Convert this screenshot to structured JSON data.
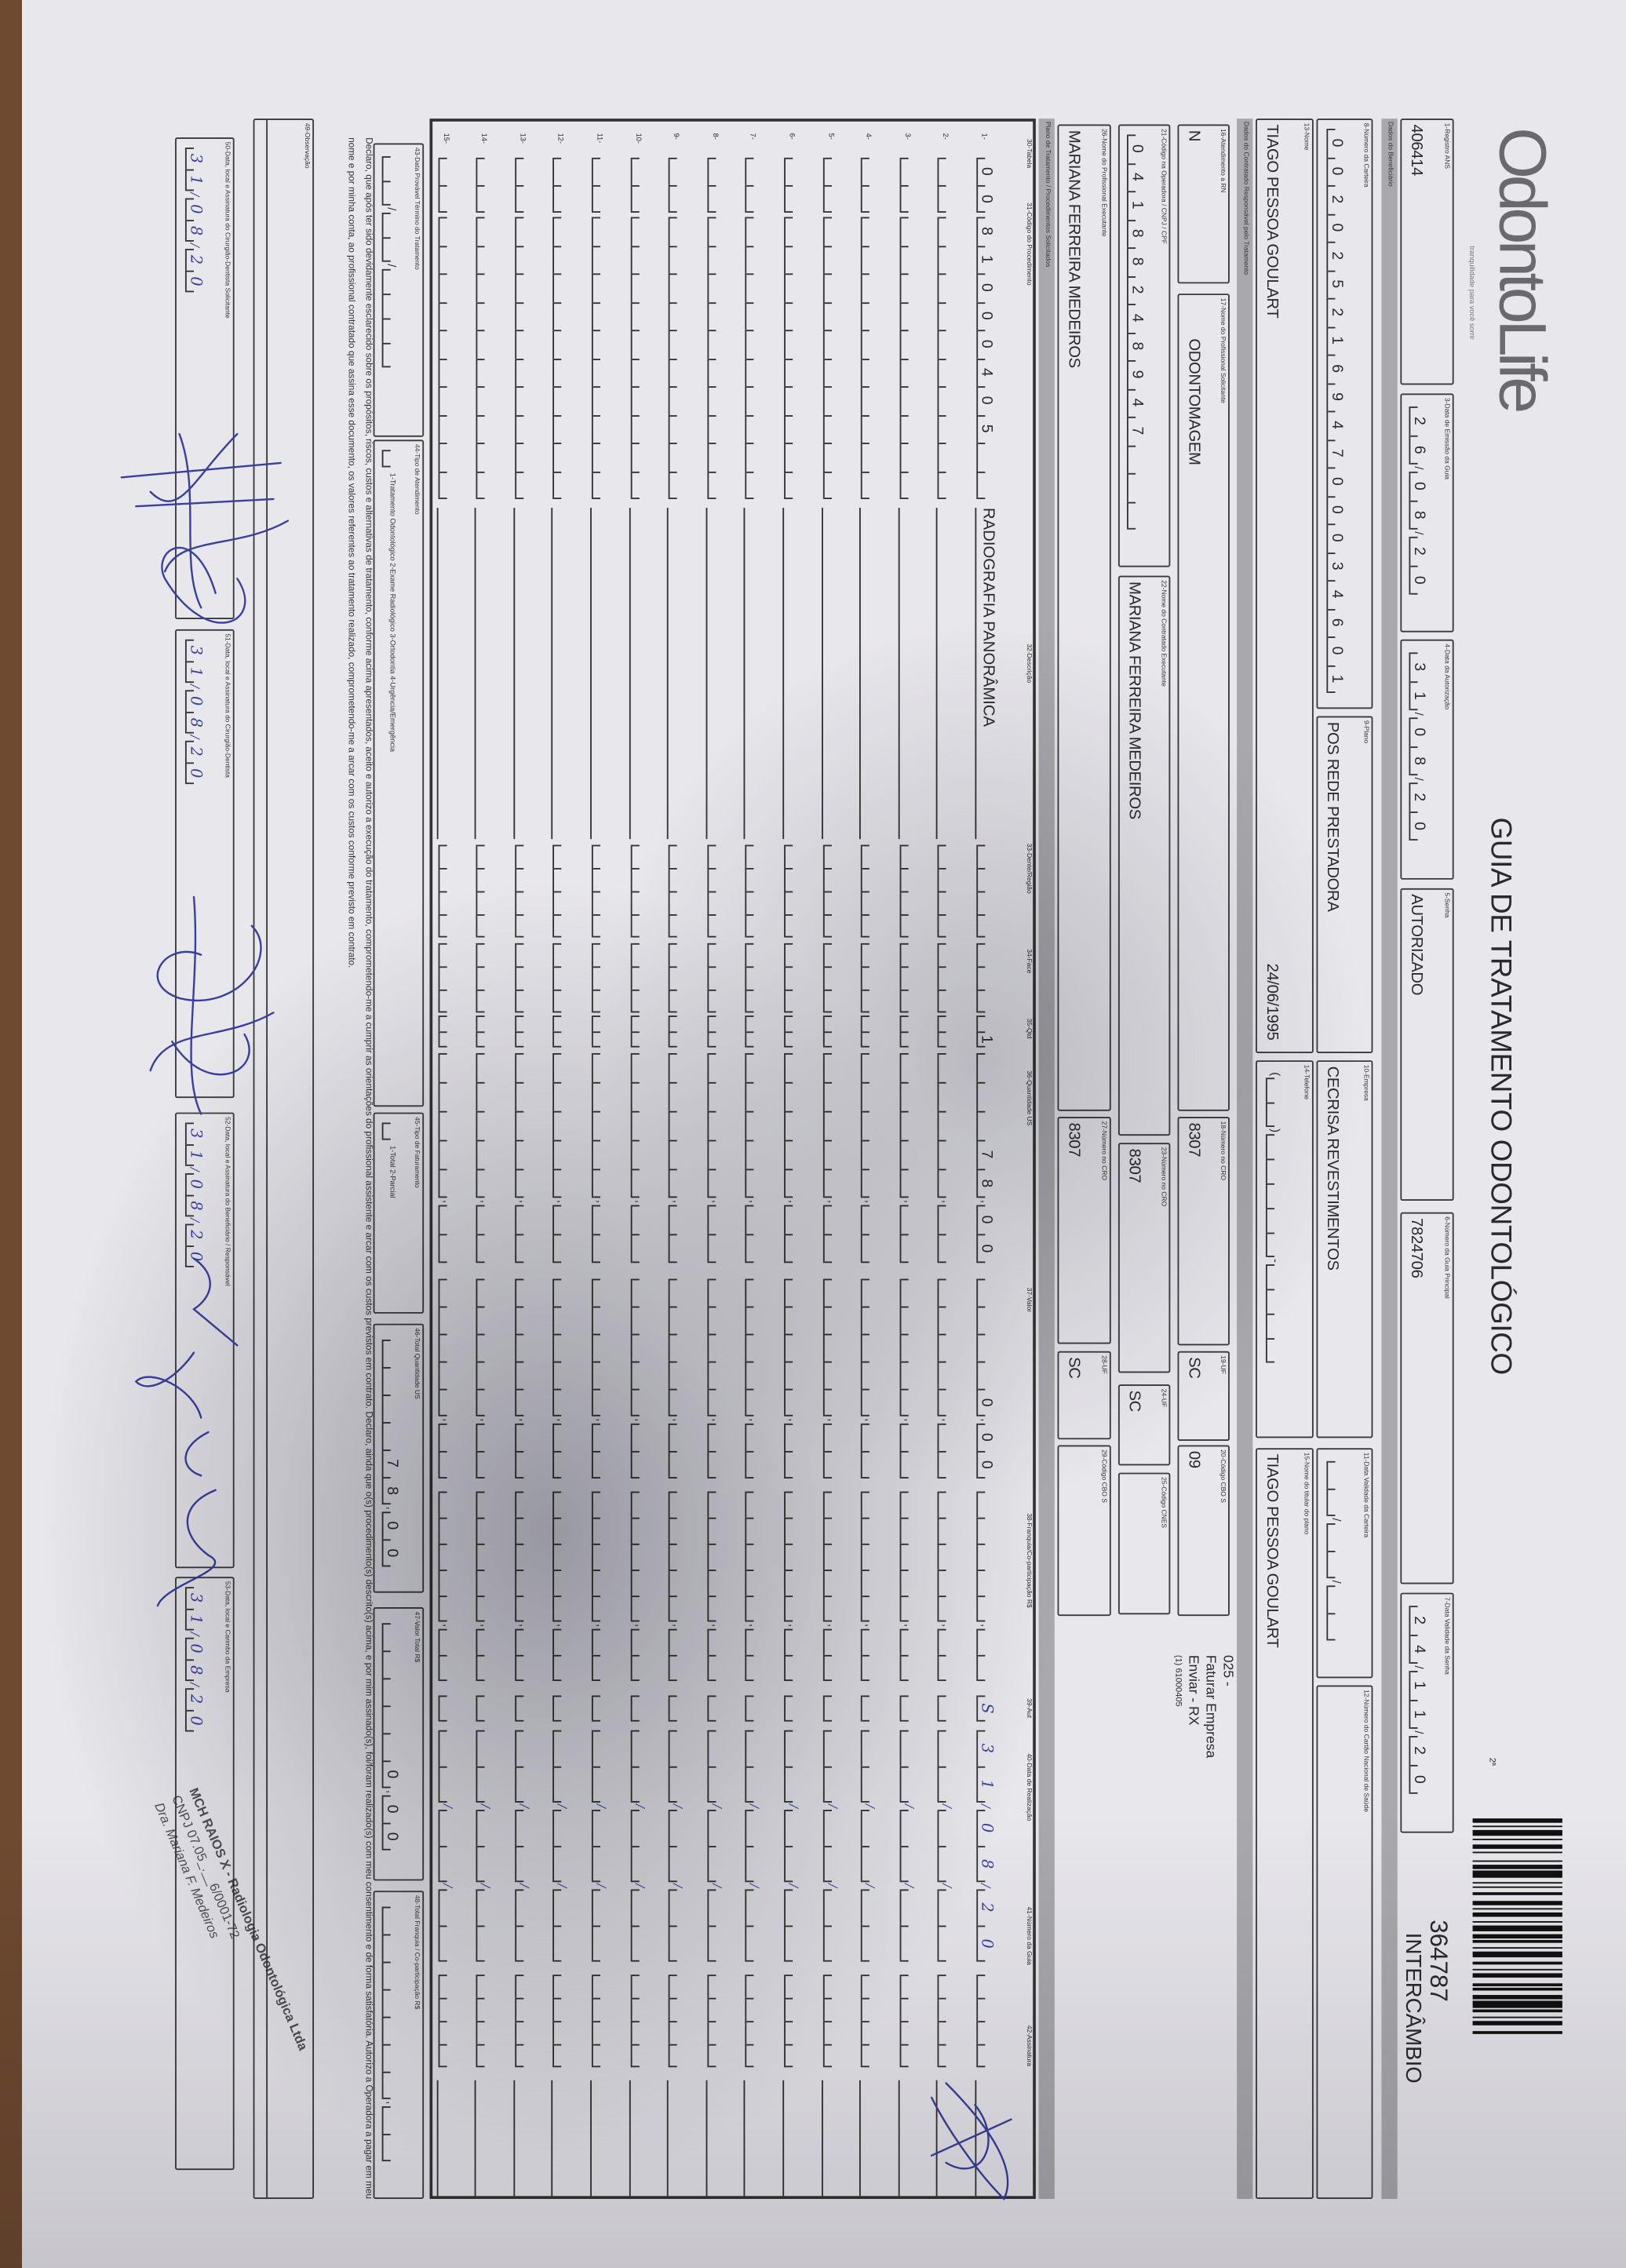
{
  "header": {
    "logo_text": "OdontoLife",
    "logo_tagline": "tranquilidade para você sorrir",
    "title": "GUIA DE TRATAMENTO ODONTOLÓGICO",
    "via": "2ª",
    "barcode_number": "364787",
    "barcode_type": "INTERCÂMBIO"
  },
  "sections": {
    "beneficiary": "Dados do Beneficiário",
    "contractor": "Dados do Contratado Responsável pelo Tratamento",
    "plan": "Plano de Tratamento / Procedimentos Solicitados"
  },
  "fields": {
    "registro_ans": {
      "label": "1-Registro ANS",
      "value": "406414"
    },
    "data_emissao": {
      "label": "3-Data de Emissão da Guia",
      "value": "26/08/20"
    },
    "data_autorizacao": {
      "label": "4-Data da Autorização",
      "value": "31/08/20"
    },
    "senha": {
      "label": "5-Senha",
      "value": "AUTORIZADO"
    },
    "guia_principal": {
      "label": "6-Número da Guia Principal",
      "value": "7824706"
    },
    "validade_senha": {
      "label": "7-Data Validade da Senha",
      "value": "24/11/20"
    },
    "carteira": {
      "label": "8-Número da Carteira",
      "value": "00202521694700034601"
    },
    "plano": {
      "label": "9-Plano",
      "value": "POS REDE PRESTADORA"
    },
    "empresa": {
      "label": "10-Empresa",
      "value": "CECRISA REVESTIMENTOS"
    },
    "validade_carteira": {
      "label": "11-Data Validade da Carteira",
      "value": ""
    },
    "cns": {
      "label": "12-Número do Cartão Nacional de Saúde",
      "value": ""
    },
    "nome": {
      "label": "13-Nome",
      "value": "TIAGO PESSOA GOULART",
      "birth_date": "24/06/1995"
    },
    "telefone": {
      "label": "14-Telefone",
      "value": ""
    },
    "titular": {
      "label": "15-Nome do titular do plano",
      "value": "TIAGO PESSOA GOULART"
    },
    "rn": {
      "label": "16-Atendimento a RN",
      "value": "N"
    },
    "prof_solicitante": {
      "label": "17-Nome do Profissional Solicitante",
      "value": "ODONTOMAGEM"
    },
    "cro_solicitante": {
      "label": "18-Número no CRO",
      "value": "8307"
    },
    "uf_solicitante": {
      "label": "19-UF",
      "value": "SC"
    },
    "cbo_solicitante": {
      "label": "20-Código CBO S",
      "value": "09"
    },
    "codigo_operadora": {
      "label": "21-Código na Operadora / CNPJ / CPF",
      "value": "04188248947"
    },
    "contratado": {
      "label": "22-Nome do Contratado Executante",
      "value": "MARIANA FERREIRA MEDEIROS"
    },
    "cro_contratado": {
      "label": "23-Número no CRO",
      "value": "8307"
    },
    "uf_contratado": {
      "label": "24-UF",
      "value": "SC"
    },
    "cnes": {
      "label": "25-Código CNES",
      "value": ""
    },
    "prof_executante": {
      "label": "26-Nome do Profissional Executante",
      "value": "MARIANA FERREIRA MEDEIROS"
    },
    "cro_executante": {
      "label": "27-Número no CRO",
      "value": "8307"
    },
    "uf_executante": {
      "label": "28-UF",
      "value": "SC"
    },
    "cbo_executante": {
      "label": "29-Código CBO S",
      "value": ""
    }
  },
  "side_notes": [
    "025 -",
    "Faturar Empresa",
    "Enviar - RX",
    "(1) 61000405"
  ],
  "procedures": {
    "columns": [
      "30-Tabela",
      "31-Código do Procedimento",
      "32-Descrição",
      "33-Dente/Região",
      "34-Face",
      "35-Qtd",
      "36-Quantidade US",
      "37-Valor",
      "38-Franquia/Co-participação R$",
      "39-Aut",
      "40-Data de Realização",
      "41-Número da Guia",
      "42-Assinatura"
    ],
    "rows": [
      {
        "number": "1-",
        "tabela": "00",
        "codigo": "81000405",
        "descricao": "RADIOGRAFIA PANORÂMICA",
        "dente": "",
        "face": "",
        "qtd": "1",
        "quantidade_us": "78,00",
        "valor": "0,00",
        "franquia": "",
        "aut": "S",
        "data_realizacao": "31/08/20",
        "numero_guia": "",
        "signed": true
      },
      {
        "number": "2-"
      },
      {
        "number": "3-"
      },
      {
        "number": "4-"
      },
      {
        "number": "5-"
      },
      {
        "number": "6-"
      },
      {
        "number": "7-"
      },
      {
        "number": "8-"
      },
      {
        "number": "9-"
      },
      {
        "number": "10-"
      },
      {
        "number": "11-"
      },
      {
        "number": "12-"
      },
      {
        "number": "13-"
      },
      {
        "number": "14-"
      },
      {
        "number": "15-"
      }
    ]
  },
  "totals": {
    "termino": {
      "label": "43-Data Provável Término do Tratamento",
      "value": ""
    },
    "tipo_atendimento": {
      "label": "44-Tipo de Atendimento",
      "options": "1-Tratamento Odontológico 2-Exame Radiológico 3-Ortodontia 4-Urgência/Emergência",
      "value": ""
    },
    "tipo_faturamento": {
      "label": "45-Tipo de Faturamento",
      "options": "1-Total 2-Parcial",
      "value": ""
    },
    "total_us": {
      "label": "46-Total Quantidade US",
      "value": "78,00"
    },
    "valor_total": {
      "label": "47-Valor Total R$",
      "value": "0,00"
    },
    "total_franquia": {
      "label": "48-Total Franquia / Co-participação R$",
      "value": ""
    }
  },
  "declaration": "Declaro, que após ter sido devidamente esclarecido sobre os propósitos, riscos, custos e alternativas de tratamento, conforme acima apresentados, aceito e autorizo a execução do tratamento, comprometendo-me a cumprir as orientações do profissional assistente e arcar com os custos previstos em contrato. Declaro, ainda que o(s) procedimento(s) descrito(s) acima, e por mim assinado(s), foi/foram realizado(s) com meu consentimento e de forma satisfatória. Autorizo a Operadora a pagar em meu nome e por minha conta, ao profissional contratado que assina esse documento, os valores referentes ao tratamento realizado, comprometendo-me a arcar com os custos conforme previsto em contrato.",
  "observation": {
    "label": "49-Observação",
    "value": ""
  },
  "signatures": [
    {
      "label": "50-Data, local e Assinatura do Cirurgião-Dentista Solicitante",
      "date": "31/08/20"
    },
    {
      "label": "51-Data, local e Assinatura do Cirurgião-Dentista",
      "date": "31/08/20"
    },
    {
      "label": "52-Data, local e Assinatura do Beneficiário / Responsável",
      "date": "31/08/20"
    },
    {
      "label": "53-Data, local e Carimbo da Empresa",
      "date": "31/08/20"
    }
  ],
  "stamp": [
    "MCH RAIOS X - Radiologia Odontológica Ltda",
    "CNPJ 07.05_.__6/0001-72",
    "Dra. Mariana F. Medeiros"
  ],
  "colors": {
    "ink": "#3a3f9e",
    "form_line": "#3a3a3e",
    "section_bar": "#a9a9ad",
    "paper": "#e8e7ec"
  }
}
